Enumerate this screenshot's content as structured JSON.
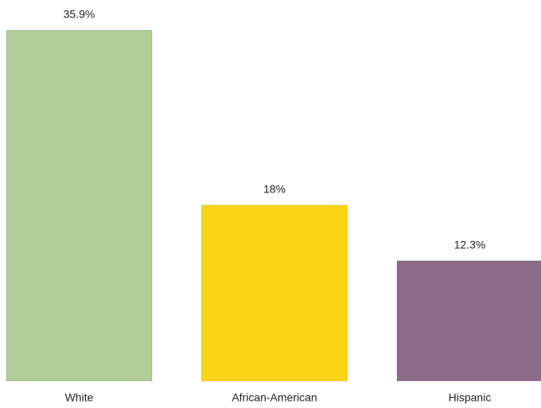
{
  "chart_data": {
    "type": "bar",
    "categories": [
      "White",
      "African-American",
      "Hispanic"
    ],
    "values": [
      35.9,
      18,
      12.3
    ],
    "value_labels": [
      "35.9%",
      "18%",
      "12.3%"
    ],
    "colors": [
      "#b1cd98",
      "#fbd416",
      "#8b6b88"
    ]
  }
}
